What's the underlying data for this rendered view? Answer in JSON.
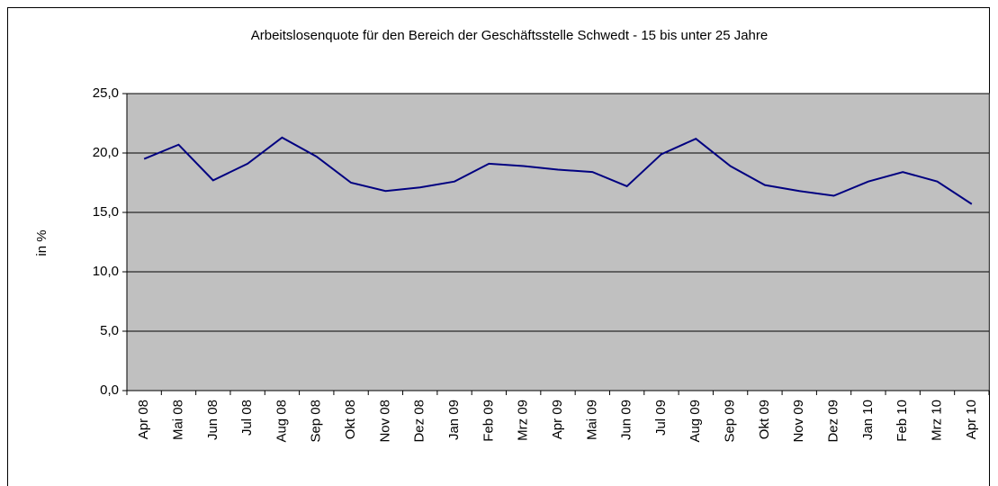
{
  "chart_data": {
    "type": "line",
    "title": "Arbeitslosenquote für den Bereich der Geschäftsstelle Schwedt - 15 bis unter 25 Jahre",
    "y_label": "in %",
    "categories": [
      "Apr 08",
      "Mai 08",
      "Jun 08",
      "Jul 08",
      "Aug 08",
      "Sep 08",
      "Okt 08",
      "Nov 08",
      "Dez 08",
      "Jan 09",
      "Feb 09",
      "Mrz 09",
      "Apr 09",
      "Mai 09",
      "Jun 09",
      "Jul 09",
      "Aug 09",
      "Sep 09",
      "Okt 09",
      "Nov 09",
      "Dez 09",
      "Jan 10",
      "Feb 10",
      "Mrz 10",
      "Apr 10"
    ],
    "values": [
      19.5,
      20.7,
      17.7,
      19.1,
      21.3,
      19.7,
      17.5,
      16.8,
      17.1,
      17.6,
      19.1,
      18.9,
      18.6,
      18.4,
      17.2,
      19.9,
      21.2,
      18.9,
      17.3,
      16.8,
      16.4,
      17.6,
      18.4,
      17.6,
      15.7
    ],
    "color": "#000080",
    "ylim": [
      0,
      25
    ],
    "yticks": [
      {
        "value": 0,
        "label": "0,0"
      },
      {
        "value": 5,
        "label": "5,0"
      },
      {
        "value": 10,
        "label": "10,0"
      },
      {
        "value": 15,
        "label": "15,0"
      },
      {
        "value": 20,
        "label": "20,0"
      },
      {
        "value": 25,
        "label": "25,0"
      }
    ],
    "grid": true
  }
}
